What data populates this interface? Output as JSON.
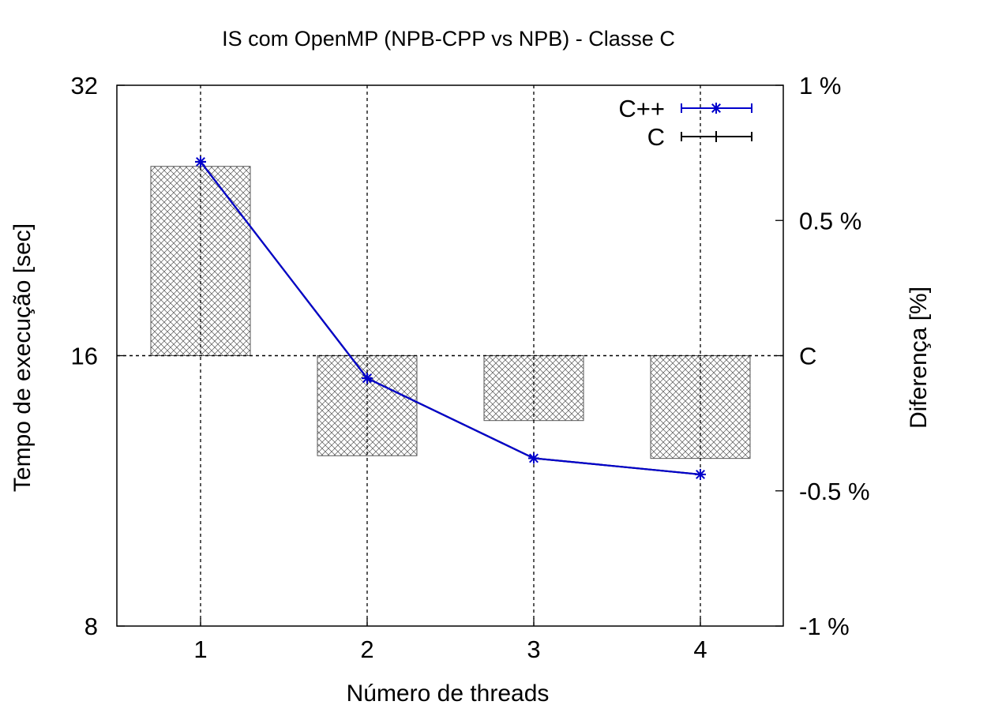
{
  "chart_data": {
    "type": "line",
    "title": "IS com OpenMP (NPB-CPP vs NPB) - Classe C",
    "xlabel": "Número de threads",
    "ylabel": "Tempo de execução [sec]",
    "y2label": "Diferença [%]",
    "categories": [
      1,
      2,
      3,
      4
    ],
    "x_tick_labels": [
      "1",
      "2",
      "3",
      "4"
    ],
    "y_scale": "log2",
    "ylim": [
      8,
      32
    ],
    "y_tick_labels": [
      "32",
      "16",
      "8"
    ],
    "y_ticks": [
      32,
      16,
      8
    ],
    "y2lim": [
      -1,
      1
    ],
    "y2_tick_labels": [
      "1 %",
      "0.5 %",
      "C",
      "-0.5 %",
      "-1 %"
    ],
    "y2_ticks": [
      1,
      0.5,
      0,
      -0.5,
      -1
    ],
    "series": [
      {
        "name": "C++",
        "values": [
          26.3,
          15.1,
          12.3,
          11.8
        ],
        "color": "#0000cc",
        "marker": "asterisk"
      },
      {
        "name": "C",
        "values": [
          26.3,
          15.1,
          12.3,
          11.8
        ],
        "color": "#000000",
        "marker": "plus"
      }
    ],
    "diff_bars": {
      "values": [
        0.7,
        -0.37,
        -0.24,
        -0.38
      ],
      "pattern": "crosshatch",
      "axis": "y2"
    },
    "grid": true,
    "legend_position": "top-right"
  }
}
